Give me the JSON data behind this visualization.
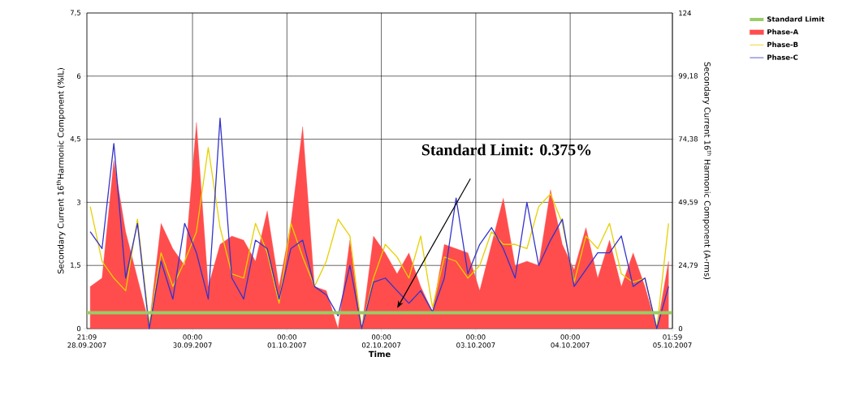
{
  "chart_data": {
    "type": "line",
    "xlabel": "Time",
    "ylabel": "Secondary Current 16$^{th}$Harmonic Component (%IL)",
    "y2label": "Secondary Current 16$^{th}$ Harmonic Component (A-rms)",
    "x": [
      "2007-09-28T22:00",
      "2007-09-29T01:00",
      "2007-09-29T04:00",
      "2007-09-29T07:00",
      "2007-09-29T10:00",
      "2007-09-29T13:00",
      "2007-09-29T16:00",
      "2007-09-29T19:00",
      "2007-09-29T22:00",
      "2007-09-30T01:00",
      "2007-09-30T04:00",
      "2007-09-30T07:00",
      "2007-09-30T10:00",
      "2007-09-30T13:00",
      "2007-09-30T16:00",
      "2007-09-30T19:00",
      "2007-09-30T22:00",
      "2007-10-01T01:00",
      "2007-10-01T04:00",
      "2007-10-01T07:00",
      "2007-10-01T10:00",
      "2007-10-01T13:00",
      "2007-10-01T16:00",
      "2007-10-01T19:00",
      "2007-10-01T22:00",
      "2007-10-02T01:00",
      "2007-10-02T04:00",
      "2007-10-02T07:00",
      "2007-10-02T10:00",
      "2007-10-02T13:00",
      "2007-10-02T16:00",
      "2007-10-02T19:00",
      "2007-10-02T22:00",
      "2007-10-03T01:00",
      "2007-10-03T04:00",
      "2007-10-03T07:00",
      "2007-10-03T10:00",
      "2007-10-03T13:00",
      "2007-10-03T16:00",
      "2007-10-03T19:00",
      "2007-10-03T22:00",
      "2007-10-04T01:00",
      "2007-10-04T04:00",
      "2007-10-04T07:00",
      "2007-10-04T10:00",
      "2007-10-04T13:00",
      "2007-10-04T16:00",
      "2007-10-04T19:00",
      "2007-10-04T22:00",
      "2007-10-05T01:00"
    ],
    "series": [
      {
        "name": "Phase-A",
        "type": "area",
        "color": "#ff4d4d",
        "values": [
          1.0,
          1.2,
          4.0,
          2.3,
          1.2,
          0.1,
          2.5,
          1.9,
          1.5,
          4.9,
          1.0,
          2.0,
          2.2,
          2.1,
          1.6,
          2.8,
          1.0,
          2.5,
          4.8,
          1.0,
          0.9,
          0.0,
          2.1,
          0.0,
          2.2,
          1.8,
          1.3,
          1.8,
          1.0,
          0.4,
          2.0,
          1.9,
          1.8,
          0.9,
          2.0,
          3.1,
          1.5,
          1.6,
          1.5,
          3.3,
          2.0,
          1.4,
          2.4,
          1.2,
          2.1,
          1.0,
          1.8,
          1.0,
          0.0,
          1.6
        ]
      },
      {
        "name": "Phase-B",
        "color": "#e6d000",
        "values": [
          2.9,
          1.6,
          1.2,
          0.9,
          2.6,
          0.1,
          1.8,
          1.0,
          1.6,
          2.3,
          4.3,
          2.4,
          1.3,
          1.2,
          2.5,
          1.8,
          0.6,
          2.5,
          1.7,
          1.0,
          1.6,
          2.6,
          2.2,
          0.0,
          1.2,
          2.0,
          1.7,
          1.2,
          2.2,
          0.5,
          1.7,
          1.6,
          1.2,
          1.5,
          2.3,
          2.0,
          2.0,
          1.9,
          2.9,
          3.2,
          2.5,
          1.1,
          2.2,
          1.9,
          2.5,
          1.3,
          1.1,
          1.2,
          0.0,
          2.5
        ]
      },
      {
        "name": "Phase-C",
        "color": "#3333cc",
        "values": [
          2.3,
          1.9,
          4.4,
          1.2,
          2.5,
          0.0,
          1.6,
          0.7,
          2.5,
          1.8,
          0.7,
          5.0,
          1.2,
          0.7,
          2.1,
          1.9,
          0.7,
          1.9,
          2.1,
          1.0,
          0.8,
          0.3,
          1.5,
          0.0,
          1.1,
          1.2,
          0.9,
          0.6,
          0.9,
          0.4,
          1.2,
          3.1,
          1.3,
          2.0,
          2.4,
          1.9,
          1.2,
          3.0,
          1.5,
          2.1,
          2.6,
          1.0,
          1.4,
          1.8,
          1.8,
          2.2,
          1.0,
          1.2,
          0.0,
          1.0
        ]
      }
    ],
    "ref_lines": [
      {
        "axis": "y",
        "value": 0.375,
        "label": "Standard Limit",
        "color": "#99cc66"
      }
    ],
    "annotations": [
      "Standard Limit: 0.375%"
    ],
    "xlim": [
      "2007-09-28T21:09",
      "2007-10-05T01:59"
    ],
    "xticks": [
      {
        "value": "2007-09-28T21:09",
        "label": "21:09 28.09.2007"
      },
      {
        "value": "2007-09-30T00:00",
        "label": "00:00 30.09.2007"
      },
      {
        "value": "2007-10-01T00:00",
        "label": "00:00 01.10.2007"
      },
      {
        "value": "2007-10-02T00:00",
        "label": "00:00 02.10.2007"
      },
      {
        "value": "2007-10-03T00:00",
        "label": "00:00 03.10.2007"
      },
      {
        "value": "2007-10-04T00:00",
        "label": "00:00 04.10.2007"
      },
      {
        "value": "2007-10-05T01:59",
        "label": "01:59 05.10.2007"
      }
    ],
    "ylim": [
      0,
      7.5
    ],
    "yticks": [
      0,
      {
        "value": 1.5,
        "label": "1,5"
      },
      3,
      {
        "value": 4.5,
        "label": "4,5"
      },
      6,
      {
        "value": 7.5,
        "label": "7,5"
      }
    ],
    "y2lim": [
      0,
      124
    ],
    "y2ticks": [
      0,
      {
        "value": 24.79,
        "label": "24,79"
      },
      {
        "value": 49.59,
        "label": "49,59"
      },
      {
        "value": 74.38,
        "label": "74,38"
      },
      {
        "value": 99.18,
        "label": "99,18"
      },
      124
    ],
    "grid": true,
    "legend": "top right"
  }
}
